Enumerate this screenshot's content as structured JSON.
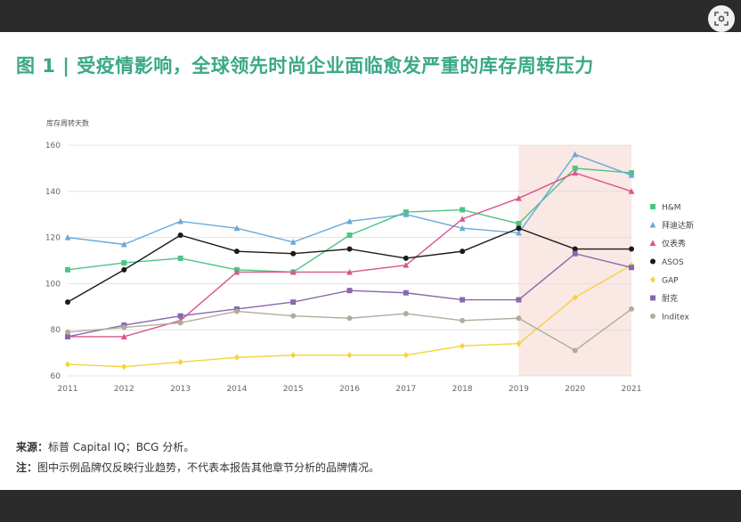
{
  "title": "图 1 | 受疫情影响，全球领先时尚企业面临愈发严重的库存周转压力",
  "unit_label": "库存周转天数",
  "source": {
    "label": "来源：",
    "text": "标普 Capital IQ；BCG 分析。"
  },
  "note": {
    "label": "注：",
    "text": "图中示例品牌仅反映行业趋势，不代表本报告其他章节分析的品牌情况。"
  },
  "chart_data": {
    "type": "line",
    "x": [
      "2011",
      "2012",
      "2013",
      "2014",
      "2015",
      "2016",
      "2017",
      "2018",
      "2019",
      "2020",
      "2021"
    ],
    "ylim": [
      60,
      160
    ],
    "yticks": [
      60,
      80,
      100,
      120,
      140,
      160
    ],
    "xlabel": "",
    "ylabel": "库存周转天数",
    "grid": true,
    "legend_position": "right",
    "highlight_range": [
      "2019",
      "2021"
    ],
    "highlight_color": "#f9e8e4",
    "series": [
      {
        "name": "H&M",
        "color": "#4dc485",
        "marker": "square",
        "values": [
          106,
          109,
          111,
          106,
          105,
          121,
          131,
          132,
          126,
          150,
          148
        ]
      },
      {
        "name": "拜迪达斯",
        "color": "#6aa8d8",
        "marker": "triangle",
        "values": [
          120,
          117,
          127,
          124,
          118,
          127,
          130,
          124,
          122,
          156,
          147
        ]
      },
      {
        "name": "仅表秀",
        "color": "#d9558e",
        "marker": "triangle",
        "values": [
          77,
          77,
          84,
          105,
          105,
          105,
          108,
          128,
          137,
          148,
          140
        ]
      },
      {
        "name": "ASOS",
        "color": "#1a1a1a",
        "marker": "circle",
        "values": [
          92,
          106,
          121,
          114,
          113,
          115,
          111,
          114,
          124,
          115,
          115
        ]
      },
      {
        "name": "GAP",
        "color": "#f4d23c",
        "marker": "diamond",
        "values": [
          65,
          64,
          66,
          68,
          69,
          69,
          69,
          73,
          74,
          94,
          108
        ]
      },
      {
        "name": "耐克",
        "color": "#8a67ad",
        "marker": "square",
        "values": [
          77,
          82,
          86,
          89,
          92,
          97,
          96,
          93,
          93,
          113,
          107
        ]
      },
      {
        "name": "Inditex",
        "color": "#b0ad9b",
        "marker": "circle",
        "values": [
          79,
          81,
          83,
          88,
          86,
          85,
          87,
          84,
          85,
          71,
          89
        ]
      }
    ]
  }
}
